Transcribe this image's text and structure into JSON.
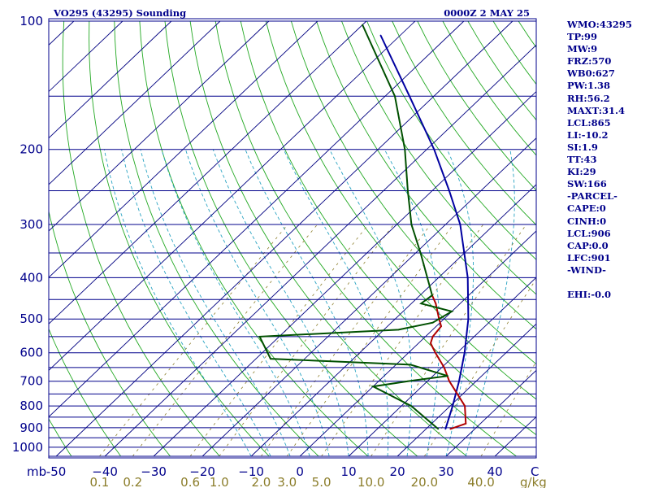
{
  "chart_data": {
    "type": "line",
    "title": "VO295 (43295) Sounding",
    "valid_time": "0000Z  2 MAY 25",
    "pressure_axis": {
      "unit": "mb",
      "ticks": [
        100,
        200,
        300,
        400,
        500,
        600,
        700,
        800,
        900,
        1000
      ],
      "ylim": [
        1050,
        100
      ],
      "scale": "log"
    },
    "temperature_axis": {
      "unit": "C",
      "ticks": [
        "-50",
        "−40",
        "−30",
        "−20",
        "−10",
        "0",
        "10",
        "20",
        "30",
        "40"
      ],
      "tick_values": [
        -50,
        -40,
        -30,
        -20,
        -10,
        0,
        10,
        20,
        30,
        40
      ]
    },
    "mixing_ratio_axis": {
      "unit": "g/kg",
      "ticks": [
        "0.1",
        "0.2",
        "0.6",
        "1.0",
        "2.0",
        "3.0",
        "5.0",
        "10.0",
        "20.0",
        "40.0"
      ],
      "tick_values": [
        0.1,
        0.2,
        0.6,
        1.0,
        2.0,
        3.0,
        5.0,
        10.0,
        20.0,
        40.0
      ]
    },
    "grid": true,
    "series": [
      {
        "role": "parcel",
        "color": "#0000a0",
        "points": [
          {
            "p": 906,
            "t": 24.0
          },
          {
            "p": 800,
            "t": 20.5
          },
          {
            "p": 700,
            "t": 16.5
          },
          {
            "p": 600,
            "t": 11.5
          },
          {
            "p": 500,
            "t": 5.0
          },
          {
            "p": 400,
            "t": -4.0
          },
          {
            "p": 300,
            "t": -17.0
          },
          {
            "p": 250,
            "t": -26.5
          },
          {
            "p": 200,
            "t": -38.5
          },
          {
            "p": 150,
            "t": -55.0
          },
          {
            "p": 108,
            "t": -74.0
          }
        ]
      },
      {
        "role": "temperature",
        "color": "#b00000",
        "points": [
          {
            "p": 906,
            "t": 25.0
          },
          {
            "p": 880,
            "t": 27.0
          },
          {
            "p": 800,
            "t": 23.0
          },
          {
            "p": 700,
            "t": 14.5
          },
          {
            "p": 650,
            "t": 10.5
          },
          {
            "p": 600,
            "t": 5.5
          },
          {
            "p": 570,
            "t": 2.5
          },
          {
            "p": 550,
            "t": 1.5
          },
          {
            "p": 520,
            "t": 1.0
          },
          {
            "p": 500,
            "t": -1.0
          },
          {
            "p": 460,
            "t": -5.0
          },
          {
            "p": 440,
            "t": -7.5
          }
        ]
      },
      {
        "role": "dewpoint",
        "color": "#005000",
        "points": [
          {
            "p": 906,
            "t": 22.5
          },
          {
            "p": 800,
            "t": 12.0
          },
          {
            "p": 720,
            "t": 0.0
          },
          {
            "p": 700,
            "t": 6.0
          },
          {
            "p": 680,
            "t": 13.0
          },
          {
            "p": 640,
            "t": 3.0
          },
          {
            "p": 620,
            "t": -27.0
          },
          {
            "p": 550,
            "t": -34.0
          },
          {
            "p": 530,
            "t": -7.0
          },
          {
            "p": 510,
            "t": -1.5
          },
          {
            "p": 480,
            "t": 0.0
          },
          {
            "p": 460,
            "t": -8.0
          },
          {
            "p": 440,
            "t": -7.5
          },
          {
            "p": 350,
            "t": -19.0
          },
          {
            "p": 300,
            "t": -27.0
          },
          {
            "p": 250,
            "t": -35.0
          },
          {
            "p": 200,
            "t": -44.5
          },
          {
            "p": 150,
            "t": -58.0
          },
          {
            "p": 102,
            "t": -80.0
          }
        ]
      }
    ]
  },
  "indices": [
    "WMO:43295",
    "TP:99",
    "MW:9",
    "FRZ:570",
    "WB0:627",
    "PW:1.38",
    "RH:56.2",
    "MAXT:31.4",
    "LCL:865",
    "LI:-10.2",
    "SI:1.9",
    "TT:43",
    "KI:29",
    "SW:166",
    "-PARCEL-",
    "CAPE:0",
    "CINH:0",
    "LCL:906",
    "CAP:0.0",
    "LFC:901",
    "-WIND-",
    "",
    "EHI:-0.0"
  ],
  "colors": {
    "isobar": "#00008b",
    "isotherm": "#000080",
    "dry_adiabat": "#22a822",
    "moist_adiabat": "#29a3c2",
    "mixing_ratio": "#8b7d2a",
    "text": "#00008b"
  }
}
